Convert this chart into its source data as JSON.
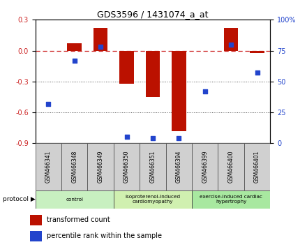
{
  "title": "GDS3596 / 1431074_a_at",
  "samples": [
    "GSM466341",
    "GSM466348",
    "GSM466349",
    "GSM466350",
    "GSM466351",
    "GSM466394",
    "GSM466399",
    "GSM466400",
    "GSM466401"
  ],
  "transformed_counts": [
    0.0,
    0.07,
    0.22,
    -0.32,
    -0.45,
    -0.78,
    0.0,
    0.22,
    -0.02
  ],
  "percentile_ranks": [
    32,
    67,
    78,
    5,
    4,
    4,
    42,
    80,
    57
  ],
  "groups": [
    {
      "label": "control",
      "indices": [
        0,
        1,
        2
      ],
      "color": "#c8f0c0"
    },
    {
      "label": "isoproterenol-induced\ncardiomyopathy",
      "indices": [
        3,
        4,
        5
      ],
      "color": "#d0f0b0"
    },
    {
      "label": "exercise-induced cardiac\nhypertrophy",
      "indices": [
        6,
        7,
        8
      ],
      "color": "#a8e8a0"
    }
  ],
  "ylim_left": [
    -0.9,
    0.3
  ],
  "ylim_right": [
    0,
    100
  ],
  "yticks_left": [
    0.3,
    0.0,
    -0.3,
    -0.6,
    -0.9
  ],
  "yticks_right": [
    100,
    75,
    50,
    25,
    0
  ],
  "bar_color": "#bb1100",
  "dot_color": "#2244cc",
  "hline_color": "#cc2222",
  "grid_color": "#555555",
  "bg_color": "#ffffff",
  "sample_box_color": "#d0d0d0",
  "sample_box_edge": "#555555"
}
